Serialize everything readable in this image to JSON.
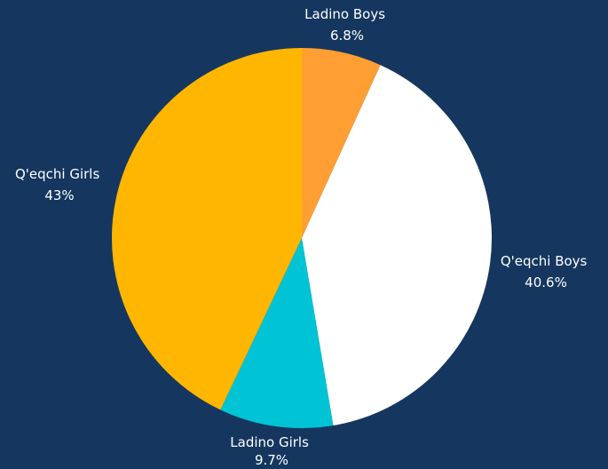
{
  "chart_data": {
    "type": "pie",
    "title": "",
    "slices": [
      {
        "label": "Ladino Boys",
        "value": 6.8,
        "value_label": "6.8%",
        "color": "#ff9e33"
      },
      {
        "label": "Q'eqchi Boys",
        "value": 40.6,
        "value_label": "40.6%",
        "color": "#ffffff"
      },
      {
        "label": "Ladino Girls",
        "value": 9.7,
        "value_label": "9.7%",
        "color": "#00c3d6"
      },
      {
        "label": "Q'eqchi Girls",
        "value": 43,
        "value_label": "43%",
        "color": "#ffb600"
      }
    ],
    "background_color": "#15375f",
    "start_angle": "12 o'clock",
    "direction": "clockwise",
    "legend": "none"
  }
}
